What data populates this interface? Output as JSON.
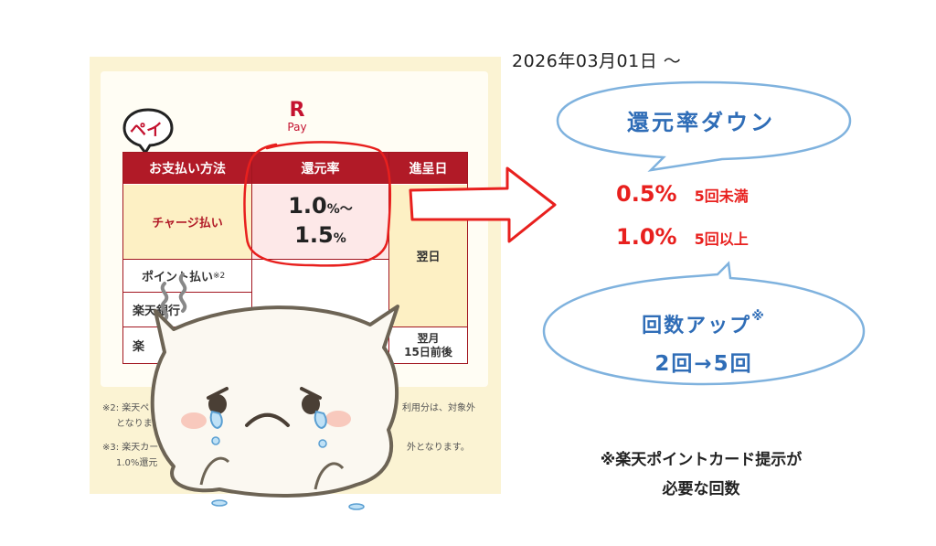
{
  "left_card": {
    "badge_text": "ペイ",
    "logo_r": "R",
    "logo_pay": "Pay",
    "table": {
      "headers": [
        "お支払い方法",
        "還元率",
        "進呈日"
      ],
      "row1_method": "チャージ払い",
      "row1_rate_a": "1.0",
      "row1_rate_a_unit": "%～",
      "row1_rate_b": "1.5",
      "row1_rate_b_unit": "%",
      "row2_method": "ポイント払い",
      "row2_note": "※2",
      "row3_method": "楽天銀行",
      "row4_method": "楽",
      "next_day": "翌日",
      "next_month_a": "翌月",
      "next_month_b": "15日前後"
    },
    "notes": {
      "n2_start": "※2:  楽天ペ",
      "n2_end": "利用分は、対象外",
      "n2_line2": "となりま",
      "n3_start": "※3:  楽天カー",
      "n3_end": "外となります。",
      "n3_line2": "1.0%還元"
    }
  },
  "right": {
    "date": "2026年03月01日 ～",
    "bubble1": "還元率ダウン",
    "rate_line1_value": "0.5%",
    "rate_line1_cond": "5回未満",
    "rate_line2_value": "1.0%",
    "rate_line2_cond": "5回以上",
    "bubble2_title": "回数アップ",
    "bubble2_mark": "※",
    "bubble2_value": "2回→5回",
    "footnote_line1": "※楽天ポイントカード提示が",
    "footnote_line2": "必要な回数"
  },
  "colors": {
    "header_red": "#b11a27",
    "accent_red": "#e8201e",
    "bubble_blue": "#2f6db7",
    "panel_cream": "#fbf3d3",
    "cell_yellow": "#fdf0c4"
  }
}
